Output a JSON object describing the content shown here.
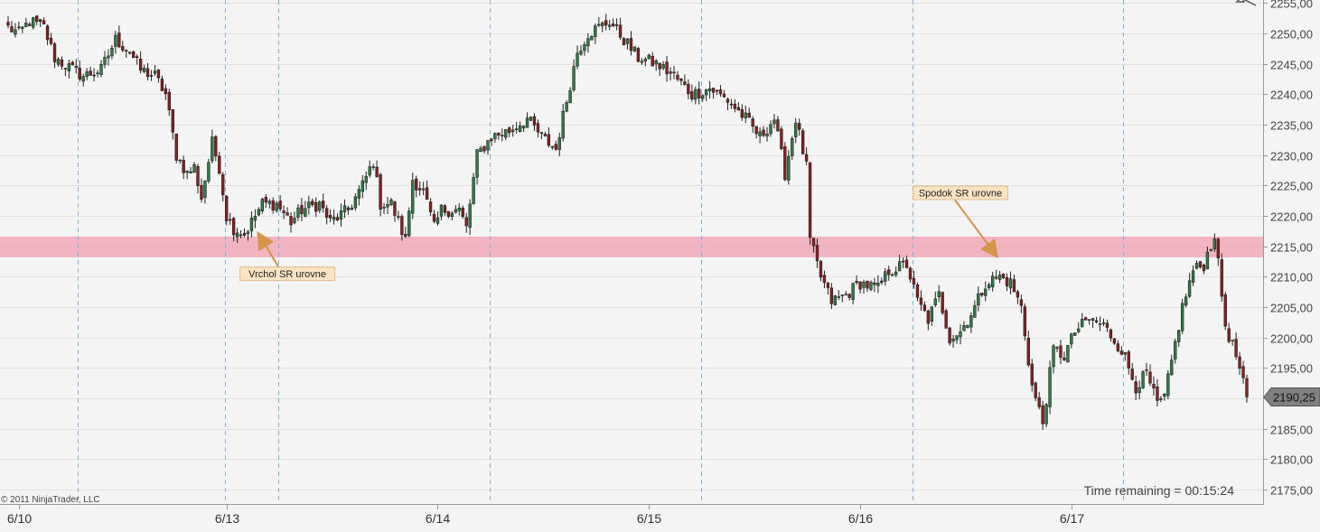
{
  "copyright": "© 2011 NinjaTrader, LLC",
  "status_text": "Time remaining = 00:15:24",
  "colors": {
    "background": "#f4f4f4",
    "up_candle": "#2e7d45",
    "down_candle": "#8a1f1f",
    "sr_zone": "#f0a0b0",
    "session_line": "#7fb0de",
    "annotation_fill": "#fbe3c4",
    "annotation_border": "#d9a36b",
    "arrow": "#d6944c",
    "price_marker": "#808080"
  },
  "chart_data": {
    "type": "candlestick",
    "y_ticks": [
      "2175,00",
      "2180,00",
      "2185,00",
      "2190,00",
      "2195,00",
      "2200,00",
      "2205,00",
      "2210,00",
      "2215,00",
      "2220,00",
      "2225,00",
      "2230,00",
      "2235,00",
      "2240,00",
      "2245,00",
      "2250,00",
      "2255,00"
    ],
    "y_values": [
      2175,
      2180,
      2185,
      2190,
      2195,
      2200,
      2205,
      2210,
      2215,
      2220,
      2225,
      2230,
      2235,
      2240,
      2245,
      2250,
      2255
    ],
    "ylim": [
      2172.5,
      2255.5
    ],
    "x_ticks": [
      "6/10",
      "6/13",
      "6/14",
      "6/15",
      "6/16",
      "6/17"
    ],
    "x_tick_bars": [
      3,
      61,
      120,
      179,
      238,
      297
    ],
    "session_break_bars": [
      19,
      60,
      75,
      134,
      193,
      252,
      311
    ],
    "bar_count": 347,
    "last_price": 2190.25,
    "last_price_label": "2190,25",
    "sr_zone": {
      "low": 2213.2,
      "high": 2216.6
    },
    "annotations": [
      {
        "text": "Vrchol SR urovne",
        "label_bar": 78,
        "label_price": 2210.5,
        "target_bar": 70,
        "target_price": 2217.0
      },
      {
        "text": "Spodok SR urovne",
        "label_bar": 266,
        "label_price": 2223.8,
        "target_bar": 276,
        "target_price": 2213.5
      }
    ],
    "anchors": [
      [
        0,
        2251
      ],
      [
        3,
        2250
      ],
      [
        6,
        2252
      ],
      [
        10,
        2251
      ],
      [
        13,
        2246
      ],
      [
        18,
        2244
      ],
      [
        21,
        2243
      ],
      [
        26,
        2244
      ],
      [
        30,
        2249
      ],
      [
        34,
        2247
      ],
      [
        37,
        2244
      ],
      [
        41,
        2243
      ],
      [
        44,
        2240
      ],
      [
        47,
        2230
      ],
      [
        50,
        2227
      ],
      [
        52,
        2228
      ],
      [
        54,
        2223
      ],
      [
        57,
        2232
      ],
      [
        59,
        2228
      ],
      [
        61,
        2220
      ],
      [
        63,
        2218
      ],
      [
        66,
        2217
      ],
      [
        69,
        2220
      ],
      [
        71,
        2222
      ],
      [
        75,
        2222
      ],
      [
        79,
        2219
      ],
      [
        82,
        2221
      ],
      [
        87,
        2222
      ],
      [
        90,
        2219
      ],
      [
        95,
        2221
      ],
      [
        99,
        2225
      ],
      [
        102,
        2229
      ],
      [
        104,
        2222
      ],
      [
        107,
        2222
      ],
      [
        111,
        2216
      ],
      [
        113,
        2226
      ],
      [
        116,
        2224
      ],
      [
        119,
        2218
      ],
      [
        121,
        2221
      ],
      [
        126,
        2221
      ],
      [
        128,
        2218
      ],
      [
        131,
        2230
      ],
      [
        135,
        2233
      ],
      [
        140,
        2234
      ],
      [
        145,
        2236
      ],
      [
        149,
        2233
      ],
      [
        153,
        2231
      ],
      [
        156,
        2239
      ],
      [
        159,
        2247
      ],
      [
        162,
        2250
      ],
      [
        168,
        2252
      ],
      [
        172,
        2249
      ],
      [
        176,
        2246
      ],
      [
        181,
        2245
      ],
      [
        186,
        2243
      ],
      [
        191,
        2240
      ],
      [
        196,
        2241
      ],
      [
        201,
        2239
      ],
      [
        206,
        2236
      ],
      [
        210,
        2233
      ],
      [
        214,
        2236
      ],
      [
        217,
        2227
      ],
      [
        220,
        2236
      ],
      [
        223,
        2228
      ],
      [
        224,
        2216
      ],
      [
        227,
        2210
      ],
      [
        230,
        2206
      ],
      [
        234,
        2207
      ],
      [
        238,
        2209
      ],
      [
        243,
        2208
      ],
      [
        246,
        2211
      ],
      [
        251,
        2212
      ],
      [
        254,
        2206
      ],
      [
        257,
        2203
      ],
      [
        260,
        2207
      ],
      [
        263,
        2200
      ],
      [
        266,
        2201
      ],
      [
        270,
        2205
      ],
      [
        273,
        2209
      ],
      [
        277,
        2210
      ],
      [
        280,
        2209
      ],
      [
        283,
        2205
      ],
      [
        286,
        2192
      ],
      [
        289,
        2186
      ],
      [
        292,
        2198
      ],
      [
        295,
        2197
      ],
      [
        298,
        2201
      ],
      [
        302,
        2203
      ],
      [
        306,
        2202
      ],
      [
        311,
        2198
      ],
      [
        315,
        2192
      ],
      [
        318,
        2194
      ],
      [
        321,
        2189
      ],
      [
        323,
        2190
      ],
      [
        325,
        2196
      ],
      [
        328,
        2205
      ],
      [
        331,
        2211
      ],
      [
        334,
        2212
      ],
      [
        337,
        2217
      ],
      [
        340,
        2202
      ],
      [
        343,
        2197
      ],
      [
        346,
        2190
      ]
    ]
  }
}
